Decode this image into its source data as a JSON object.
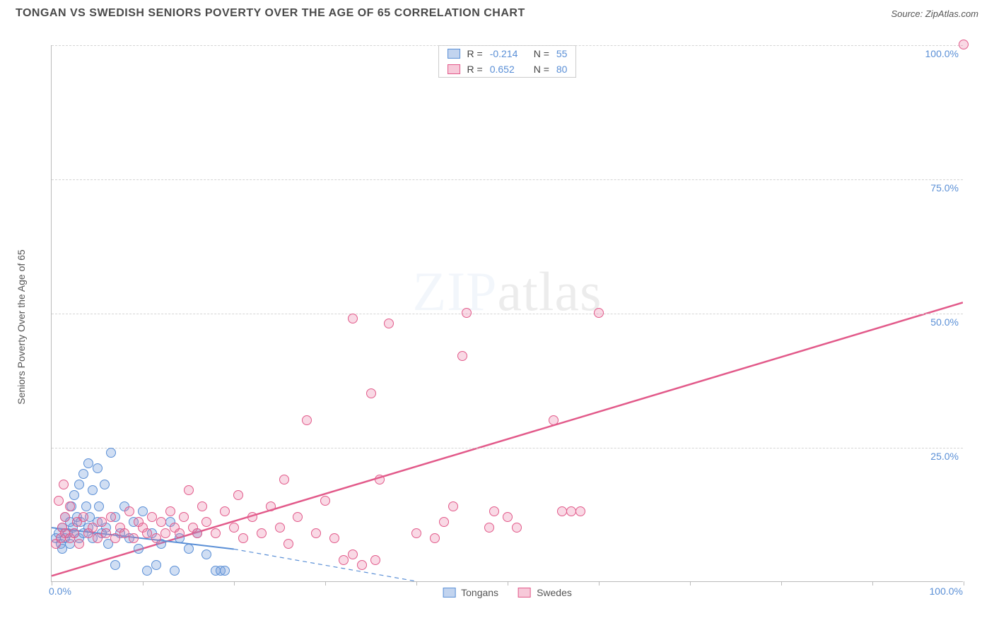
{
  "title": "TONGAN VS SWEDISH SENIORS POVERTY OVER THE AGE OF 65 CORRELATION CHART",
  "source": "Source: ZipAtlas.com",
  "y_axis_label": "Seniors Poverty Over the Age of 65",
  "watermark": {
    "bold": "ZIP",
    "light": "atlas"
  },
  "chart": {
    "type": "scatter",
    "xlim": [
      0,
      100
    ],
    "ylim": [
      0,
      100
    ],
    "background_color": "#ffffff",
    "grid_color": "#d5d5d5",
    "axis_color": "#bbbbbb",
    "tick_label_color": "#5a8fd6",
    "tick_label_fontsize": 14,
    "y_ticks": [
      25,
      50,
      75,
      100
    ],
    "y_tick_labels": [
      "25.0%",
      "50.0%",
      "75.0%",
      "100.0%"
    ],
    "x_ticks": [
      0,
      10,
      20,
      30,
      40,
      50,
      60,
      70,
      80,
      90,
      100
    ],
    "x_axis_end_labels": {
      "left": "0.0%",
      "right": "100.0%"
    },
    "marker_radius": 7,
    "series": [
      {
        "name": "Tongans",
        "color_fill": "rgba(120,160,220,0.35)",
        "color_stroke": "#5a8fd6",
        "R": "-0.214",
        "N": "55",
        "trend": {
          "solid": {
            "x1": 0,
            "y1": 10,
            "x2": 20,
            "y2": 6
          },
          "dashed": {
            "x1": 20,
            "y1": 6,
            "x2": 40,
            "y2": 0
          },
          "stroke_width": 2
        },
        "points": [
          [
            0.5,
            8
          ],
          [
            0.8,
            9
          ],
          [
            1.0,
            7
          ],
          [
            1.2,
            10
          ],
          [
            1.2,
            6
          ],
          [
            1.5,
            8
          ],
          [
            1.5,
            12
          ],
          [
            1.8,
            9
          ],
          [
            2.0,
            11
          ],
          [
            2.0,
            7
          ],
          [
            2.2,
            14
          ],
          [
            2.3,
            10
          ],
          [
            2.5,
            9
          ],
          [
            2.5,
            16
          ],
          [
            2.8,
            12
          ],
          [
            3.0,
            8
          ],
          [
            3.0,
            18
          ],
          [
            3.2,
            11
          ],
          [
            3.5,
            20
          ],
          [
            3.5,
            9
          ],
          [
            3.8,
            14
          ],
          [
            4.0,
            10
          ],
          [
            4.0,
            22
          ],
          [
            4.2,
            12
          ],
          [
            4.5,
            17
          ],
          [
            4.5,
            8
          ],
          [
            5.0,
            21
          ],
          [
            5.0,
            11
          ],
          [
            5.2,
            14
          ],
          [
            5.5,
            9
          ],
          [
            5.8,
            18
          ],
          [
            6.0,
            10
          ],
          [
            6.2,
            7
          ],
          [
            6.5,
            24
          ],
          [
            7.0,
            12
          ],
          [
            7.0,
            3
          ],
          [
            7.5,
            9
          ],
          [
            8.0,
            14
          ],
          [
            8.5,
            8
          ],
          [
            9.0,
            11
          ],
          [
            9.5,
            6
          ],
          [
            10.0,
            13
          ],
          [
            10.5,
            2
          ],
          [
            11.0,
            9
          ],
          [
            11.5,
            3
          ],
          [
            12.0,
            7
          ],
          [
            13.0,
            11
          ],
          [
            13.5,
            2
          ],
          [
            14.0,
            8
          ],
          [
            15.0,
            6
          ],
          [
            16.0,
            9
          ],
          [
            17.0,
            5
          ],
          [
            18.0,
            2
          ],
          [
            18.5,
            2
          ],
          [
            19.0,
            2
          ]
        ]
      },
      {
        "name": "Swedes",
        "color_fill": "rgba(235,120,160,0.28)",
        "color_stroke": "#e25a8a",
        "R": "0.652",
        "N": "80",
        "trend": {
          "solid": {
            "x1": 0,
            "y1": 1,
            "x2": 100,
            "y2": 52
          },
          "stroke_width": 2.5
        },
        "points": [
          [
            0.5,
            7
          ],
          [
            0.8,
            15
          ],
          [
            1.0,
            8
          ],
          [
            1.2,
            10
          ],
          [
            1.3,
            18
          ],
          [
            1.5,
            9
          ],
          [
            1.5,
            12
          ],
          [
            2.0,
            8
          ],
          [
            2.0,
            14
          ],
          [
            2.5,
            9
          ],
          [
            2.8,
            11
          ],
          [
            3.0,
            7
          ],
          [
            3.5,
            12
          ],
          [
            4.0,
            9
          ],
          [
            4.5,
            10
          ],
          [
            5.0,
            8
          ],
          [
            5.5,
            11
          ],
          [
            6.0,
            9
          ],
          [
            6.5,
            12
          ],
          [
            7.0,
            8
          ],
          [
            7.5,
            10
          ],
          [
            8.0,
            9
          ],
          [
            8.5,
            13
          ],
          [
            9.0,
            8
          ],
          [
            9.5,
            11
          ],
          [
            10.0,
            10
          ],
          [
            10.5,
            9
          ],
          [
            11.0,
            12
          ],
          [
            11.5,
            8
          ],
          [
            12.0,
            11
          ],
          [
            12.5,
            9
          ],
          [
            13.0,
            13
          ],
          [
            13.5,
            10
          ],
          [
            14.0,
            9
          ],
          [
            14.5,
            12
          ],
          [
            15.0,
            17
          ],
          [
            15.5,
            10
          ],
          [
            16.0,
            9
          ],
          [
            16.5,
            14
          ],
          [
            17.0,
            11
          ],
          [
            18.0,
            9
          ],
          [
            19.0,
            13
          ],
          [
            20.0,
            10
          ],
          [
            20.5,
            16
          ],
          [
            21.0,
            8
          ],
          [
            22.0,
            12
          ],
          [
            23.0,
            9
          ],
          [
            24.0,
            14
          ],
          [
            25.0,
            10
          ],
          [
            25.5,
            19
          ],
          [
            26.0,
            7
          ],
          [
            27.0,
            12
          ],
          [
            28.0,
            30
          ],
          [
            29.0,
            9
          ],
          [
            30.0,
            15
          ],
          [
            31.0,
            8
          ],
          [
            32.0,
            4
          ],
          [
            33.0,
            5
          ],
          [
            33.0,
            49
          ],
          [
            34.0,
            3
          ],
          [
            35.0,
            35
          ],
          [
            35.5,
            4
          ],
          [
            36.0,
            19
          ],
          [
            37.0,
            48
          ],
          [
            40.0,
            9
          ],
          [
            42.0,
            8
          ],
          [
            43.0,
            11
          ],
          [
            44.0,
            14
          ],
          [
            45.0,
            42
          ],
          [
            45.5,
            50
          ],
          [
            48.0,
            10
          ],
          [
            48.5,
            13
          ],
          [
            50.0,
            12
          ],
          [
            51.0,
            10
          ],
          [
            55.0,
            30
          ],
          [
            56.0,
            13
          ],
          [
            57.0,
            13
          ],
          [
            58.0,
            13
          ],
          [
            60.0,
            50
          ],
          [
            100.0,
            100
          ]
        ]
      }
    ],
    "legend_bottom": [
      "Tongans",
      "Swedes"
    ]
  }
}
